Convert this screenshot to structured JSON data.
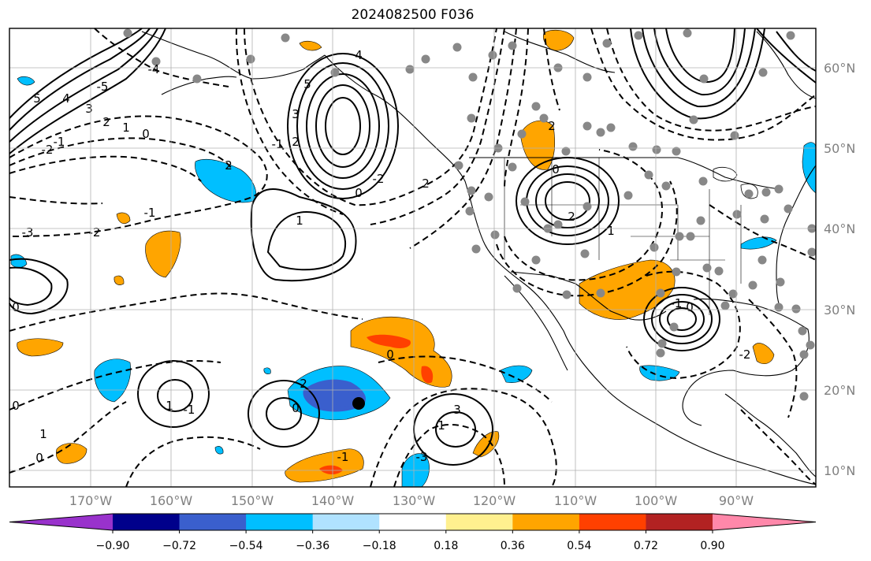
{
  "title": "2024082500 F036",
  "lat_labels": [
    "60°N",
    "50°N",
    "40°N",
    "30°N",
    "20°N",
    "10°N"
  ],
  "lon_labels": [
    "170°W",
    "160°W",
    "150°W",
    "140°W",
    "130°W",
    "120°W",
    "110°W",
    "100°W",
    "90°W"
  ],
  "colorbar": {
    "colors": [
      "#9932cc",
      "#00008b",
      "#3a5fcd",
      "#00bfff",
      "#b0e2ff",
      "#ffffff",
      "#fff08f",
      "#ffa500",
      "#ff4000",
      "#b22222",
      "#ff88aa"
    ],
    "tick_labels": [
      "−0.90",
      "−0.72",
      "−0.54",
      "−0.36",
      "−0.18",
      "0.18",
      "0.36",
      "0.54",
      "0.72",
      "0.90"
    ]
  },
  "contour_labels": [
    "5",
    "4",
    "3",
    "2",
    "1",
    "0",
    "-1",
    "-2",
    "-3",
    "-4",
    "-5",
    "2",
    "1",
    "0",
    "4",
    "5",
    "3",
    "2",
    "0",
    "-1",
    "-2",
    "2",
    "1",
    "-2",
    "-1",
    "0",
    "1",
    "0",
    "-1",
    "0",
    "1",
    "0",
    "-1",
    "2",
    "3",
    "-3",
    "2",
    "0",
    "2",
    "1",
    "-1",
    "0",
    "-2"
  ],
  "colors": {
    "frame": "#000000",
    "grid": "#b0b0b0",
    "dot": "#888888",
    "land_line": "#000000"
  }
}
